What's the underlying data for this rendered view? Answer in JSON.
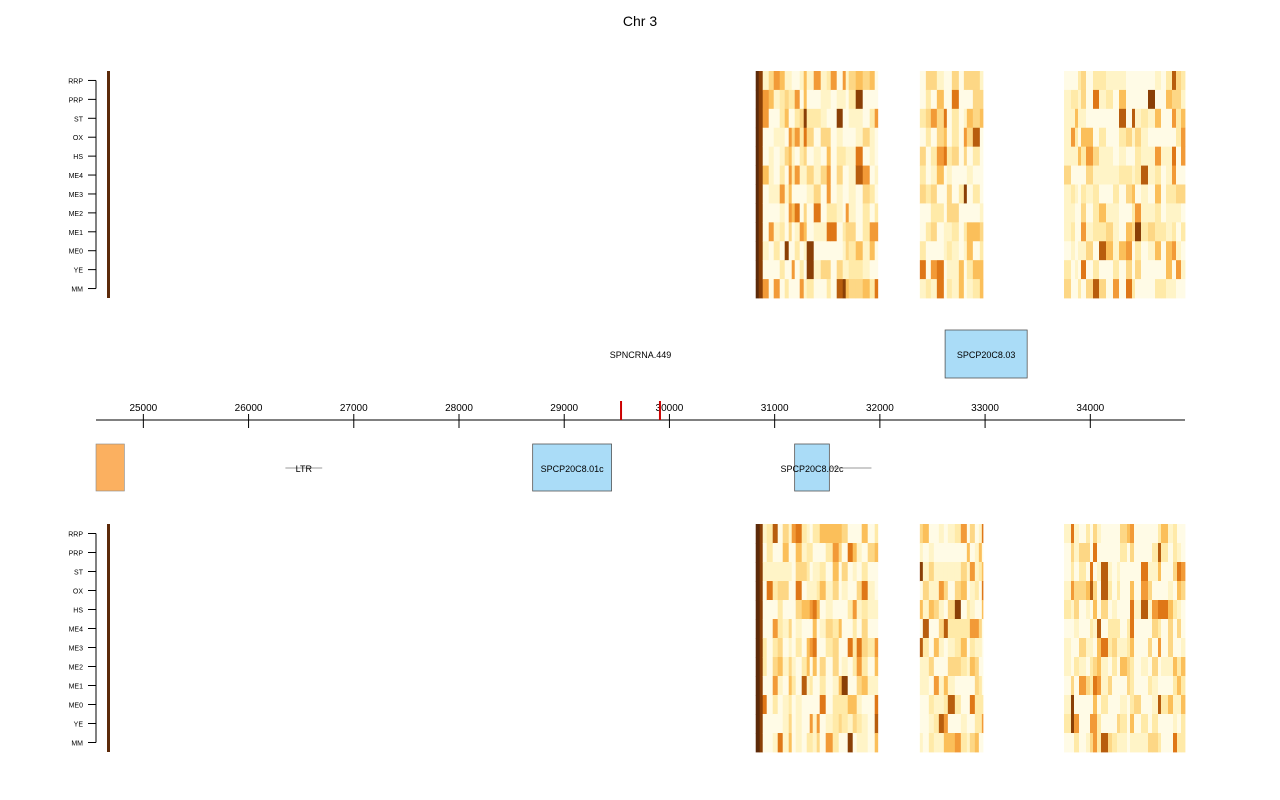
{
  "chart_data": {
    "type": "heatmap",
    "title": "Chr 3",
    "xlim": [
      24550,
      34900
    ],
    "x_ticks": [
      25000,
      26000,
      27000,
      28000,
      29000,
      30000,
      31000,
      32000,
      33000,
      34000
    ],
    "tracks_top": {
      "rows": [
        "RRP",
        "PRP",
        "ST",
        "OX",
        "HS",
        "ME4",
        "ME3",
        "ME2",
        "ME1",
        "ME0",
        "YE",
        "MM"
      ],
      "covered_ranges": [
        [
          24560,
          24600
        ],
        [
          30820,
          31980
        ],
        [
          32380,
          32980
        ],
        [
          33750,
          34900
        ]
      ]
    },
    "tracks_bottom": {
      "rows": [
        "RRP",
        "PRP",
        "ST",
        "OX",
        "HS",
        "ME4",
        "ME3",
        "ME2",
        "ME1",
        "ME0",
        "YE",
        "MM"
      ],
      "covered_ranges": [
        [
          24560,
          24600
        ],
        [
          30820,
          31980
        ],
        [
          32380,
          32980
        ],
        [
          33750,
          34900
        ]
      ]
    },
    "features_forward": [
      {
        "name": "SPNCRNA.449",
        "type": "ncRNA",
        "start": 29530,
        "end": 29920
      },
      {
        "name": "SPCP20C8.03",
        "type": "gene",
        "start": 32620,
        "end": 33400
      }
    ],
    "features_reverse": [
      {
        "name": "",
        "type": "gene",
        "start": 24550,
        "end": 24820
      },
      {
        "name": "LTR",
        "type": "LTR",
        "start": 26350,
        "end": 26700
      },
      {
        "name": "SPCP20C8.01c",
        "type": "gene",
        "start": 28700,
        "end": 29450
      },
      {
        "name": "SPCP20C8.02c",
        "type": "gene",
        "start": 31190,
        "end": 31520
      }
    ],
    "markers": [
      29540,
      29910
    ],
    "colors": {
      "gene_box": "#aadcf7",
      "orange_box": "#fbb060",
      "marker": "#cc0000",
      "heat_scale": [
        "#fffbe6",
        "#fff4c7",
        "#ffeaa8",
        "#fdd785",
        "#fbbf5a",
        "#f29a37",
        "#df7717",
        "#b85d0d",
        "#8a3f06",
        "#5c2a0a"
      ]
    }
  }
}
